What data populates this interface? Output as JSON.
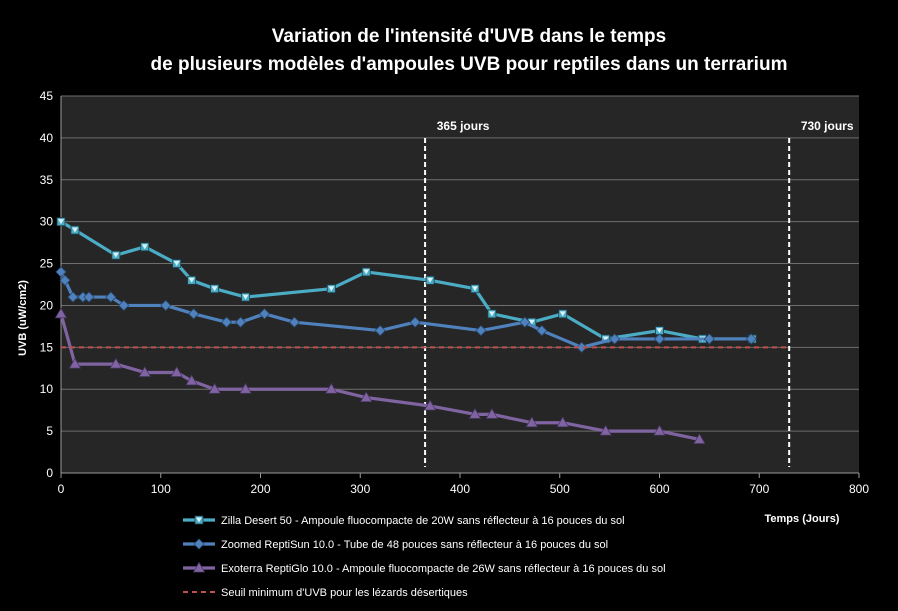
{
  "chart_data": {
    "type": "line",
    "title_line1": "Variation de l'intensité d'UVB dans le temps",
    "title_line2": "de plusieurs modèles d'ampoules UVB pour reptiles dans un terrarium",
    "xlabel": "Temps (Jours)",
    "ylabel": "UVB (uW/cm2)",
    "xlim": [
      0,
      800
    ],
    "ylim": [
      0,
      45
    ],
    "x_ticks": [
      0,
      100,
      200,
      300,
      400,
      500,
      600,
      700,
      800
    ],
    "y_ticks": [
      0,
      5,
      10,
      15,
      20,
      25,
      30,
      35,
      40,
      45
    ],
    "grid": "horizontal",
    "legend_position": "bottom",
    "annotations": [
      {
        "x": 365,
        "label": "365 jours"
      },
      {
        "x": 730,
        "label": "730 jours"
      }
    ],
    "series": [
      {
        "name": "Zilla Desert 50 - Ampoule fluocompacte de 20W sans réflecteur à 16 pouces du sol",
        "color": "#4bacc6",
        "marker": "square",
        "x": [
          0,
          14,
          55,
          84,
          116,
          131,
          154,
          185,
          271,
          306,
          370,
          415,
          432,
          472,
          503,
          546,
          600,
          643,
          693
        ],
        "y": [
          30,
          29,
          26,
          27,
          25,
          23,
          22,
          21,
          22,
          24,
          23,
          22,
          19,
          18,
          19,
          16,
          17,
          16,
          16
        ]
      },
      {
        "name": "Zoomed ReptiSun 10.0 - Tube de 48 pouces sans réflecteur à 16 pouces du sol",
        "color": "#4f81bd",
        "marker": "diamond",
        "x": [
          0,
          4,
          12,
          22,
          28,
          50,
          63,
          105,
          133,
          166,
          180,
          204,
          234,
          320,
          355,
          421,
          465,
          482,
          522,
          555,
          600,
          650,
          692
        ],
        "y": [
          24,
          23,
          21,
          21,
          21,
          21,
          20,
          20,
          19,
          18,
          18,
          19,
          18,
          17,
          18,
          17,
          18,
          17,
          15,
          16,
          16,
          16,
          16
        ]
      },
      {
        "name": "Exoterra ReptiGlo 10.0 - Ampoule fluocompacte de 26W sans réflecteur à 16 pouces du sol",
        "color": "#8064a2",
        "marker": "triangle",
        "x": [
          0,
          14,
          55,
          84,
          116,
          131,
          154,
          185,
          271,
          306,
          370,
          415,
          432,
          472,
          503,
          546,
          600,
          640
        ],
        "y": [
          19,
          13,
          13,
          12,
          12,
          11,
          10,
          10,
          10,
          9,
          8,
          7,
          7,
          6,
          6,
          5,
          5,
          4
        ]
      },
      {
        "name": "Seuil minimum d'UVB pour les lézards désertiques",
        "color": "#c0504d",
        "marker": "none",
        "dashed": true,
        "x": [
          0,
          730
        ],
        "y": [
          15,
          15
        ]
      }
    ]
  }
}
